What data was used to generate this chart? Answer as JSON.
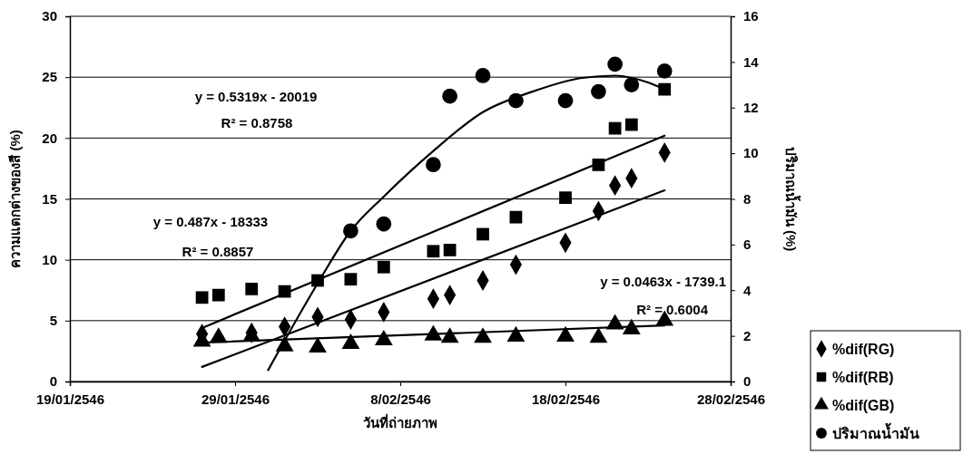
{
  "chart_data": {
    "type": "scatter",
    "xlabel": "วันที่ถ่ายภาพ",
    "ylabel": "ความแตกต่างของสี (%)",
    "y2label": "ปริมาณน้ำมัน (%)",
    "x": [
      "2546-01-27",
      "2546-01-28",
      "2546-01-30",
      "2546-02-01",
      "2546-02-03",
      "2546-02-05",
      "2546-02-07",
      "2546-02-10",
      "2546-02-11",
      "2546-02-13",
      "2546-02-15",
      "2546-02-18",
      "2546-02-20",
      "2546-02-21",
      "2546-02-22",
      "2546-02-24"
    ],
    "xlim": [
      "2546-01-19",
      "2546-02-28"
    ],
    "xticks": [
      {
        "value": "2546-01-19",
        "label": "19/01/2546"
      },
      {
        "value": "2546-01-29",
        "label": "29/01/2546"
      },
      {
        "value": "2546-02-08",
        "label": "8/02/2546"
      },
      {
        "value": "2546-02-18",
        "label": "18/02/2546"
      },
      {
        "value": "2546-02-28",
        "label": "28/02/2546"
      }
    ],
    "ylim": [
      0,
      30
    ],
    "yticks": [
      0,
      5,
      10,
      15,
      20,
      25,
      30
    ],
    "y2lim": [
      0,
      16
    ],
    "y2ticks": [
      0,
      2,
      4,
      6,
      8,
      10,
      12,
      14,
      16
    ],
    "grid": "y",
    "legend": "bottom right",
    "series": [
      {
        "name": "%dif(RG)",
        "marker": "diamond",
        "color": "#000000",
        "values": [
          3.9,
          null,
          4.0,
          4.5,
          5.3,
          5.1,
          5.7,
          6.8,
          7.1,
          8.3,
          9.6,
          11.4,
          14.0,
          16.1,
          16.7,
          18.8
        ]
      },
      {
        "name": "%dif(RB)",
        "marker": "square",
        "color": "#000000",
        "values": [
          6.9,
          7.1,
          7.6,
          7.4,
          8.3,
          8.4,
          9.4,
          10.7,
          10.8,
          12.1,
          13.5,
          15.1,
          17.8,
          20.8,
          21.1,
          24.0
        ]
      },
      {
        "name": "%dif(GB)",
        "marker": "triangle",
        "color": "#000000",
        "values": [
          3.3,
          3.6,
          3.7,
          2.9,
          2.8,
          3.1,
          3.4,
          3.8,
          3.6,
          3.6,
          3.7,
          3.7,
          3.6,
          4.7,
          4.3,
          5.0
        ]
      },
      {
        "name": "ปริมาณน้ำมัน",
        "marker": "circle",
        "color": "#000000",
        "axis": "y2",
        "values": [
          null,
          null,
          null,
          null,
          null,
          6.6,
          6.9,
          9.5,
          12.5,
          13.4,
          12.3,
          12.3,
          12.7,
          13.9,
          13.0,
          13.6
        ]
      },
      {
        "type": "line",
        "color": "#000000",
        "x": [
          "2546-01-27",
          "2546-02-24"
        ],
        "values": [
          1.2,
          15.7
        ]
      },
      {
        "type": "line",
        "color": "#000000",
        "x": [
          "2546-01-27",
          "2546-02-24"
        ],
        "values": [
          4.4,
          20.2
        ]
      },
      {
        "type": "line",
        "color": "#000000",
        "x": [
          "2546-01-27",
          "2546-02-24"
        ],
        "values": [
          3.2,
          4.6
        ]
      },
      {
        "type": "line",
        "color": "#000000",
        "axis": "y2",
        "x": [
          "2546-01-31",
          "2546-02-03",
          "2546-02-05",
          "2546-02-07",
          "2546-02-10",
          "2546-02-13",
          "2546-02-16",
          "2546-02-19",
          "2546-02-21",
          "2546-02-23",
          "2546-02-24"
        ],
        "values": [
          0.5,
          4.3,
          6.6,
          8.1,
          10.1,
          11.8,
          12.7,
          13.3,
          13.4,
          13.1,
          12.8
        ]
      }
    ],
    "annotations": [
      "y = 0.5319x - 20019",
      "R² = 0.8758",
      "y = 0.487x - 18333",
      "R² = 0.8857",
      "y = 0.0463x - 1739.1",
      "R² = 0.6004"
    ]
  }
}
